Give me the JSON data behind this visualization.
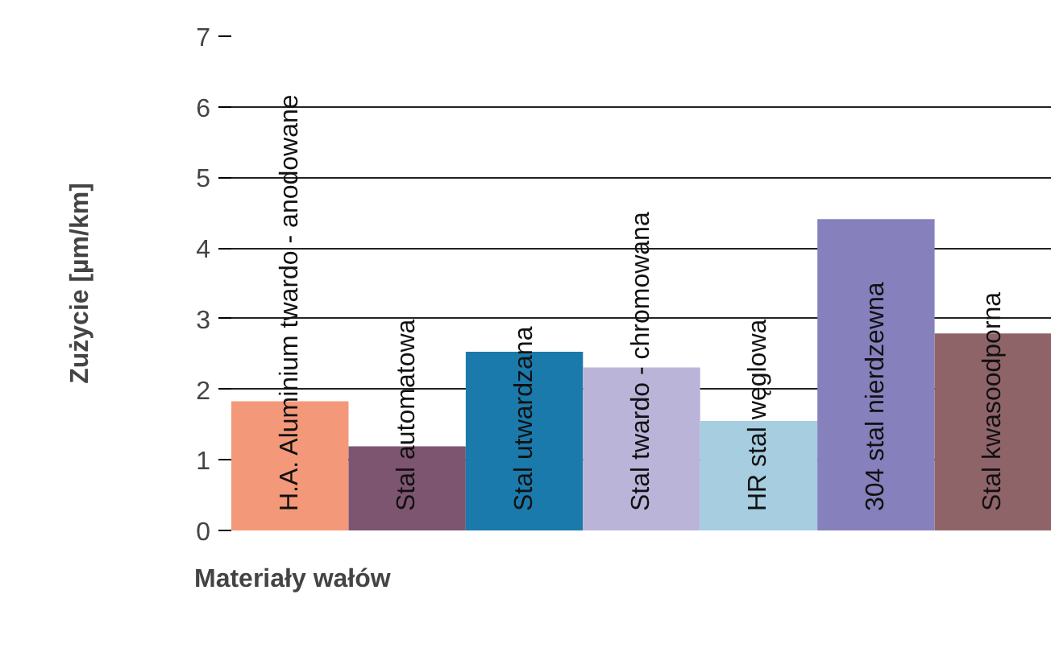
{
  "chart_data": {
    "type": "bar",
    "xlabel": "Materiały wałów",
    "ylabel": "Zużycie [µm/km]",
    "categories": [
      "H.A. Aluminium twardo - anodowane",
      "Stal automatowa",
      "Stal utwardzana",
      "Stal twardo - chromowana",
      "HR stal węglowa",
      "304 stal nierdzewna",
      "Stal kwasoodporna"
    ],
    "values": [
      1.83,
      1.19,
      2.53,
      2.31,
      1.55,
      4.41,
      2.79
    ],
    "colors": [
      "#f4987a",
      "#7e5570",
      "#1a7aab",
      "#bab4d9",
      "#a6cde0",
      "#8680bd",
      "#8f6469"
    ],
    "ylim": [
      0,
      7
    ],
    "yticks": [
      0,
      1,
      2,
      3,
      4,
      5,
      6,
      7
    ],
    "grid": "y"
  }
}
